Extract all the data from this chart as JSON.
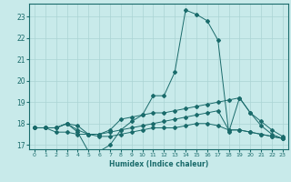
{
  "xlabel": "Humidex (Indice chaleur)",
  "background_color": "#c8eaea",
  "grid_color": "#aad4d4",
  "line_color": "#1a6b6b",
  "spine_color": "#1a6b6b",
  "xmin": -0.5,
  "xmax": 23.5,
  "ymin": 16.8,
  "ymax": 23.6,
  "yticks": [
    17,
    18,
    19,
    20,
    21,
    22,
    23
  ],
  "xticks": [
    0,
    1,
    2,
    3,
    4,
    5,
    6,
    7,
    8,
    9,
    10,
    11,
    12,
    13,
    14,
    15,
    16,
    17,
    18,
    19,
    20,
    21,
    22,
    23
  ],
  "lines": [
    {
      "x": [
        0,
        1,
        2,
        3,
        4,
        5,
        6,
        7,
        8,
        9,
        10,
        11,
        12,
        13,
        14,
        15,
        16,
        17,
        18,
        19,
        20,
        21,
        22,
        23
      ],
      "y": [
        17.8,
        17.8,
        17.8,
        18.0,
        17.6,
        16.7,
        16.7,
        17.0,
        17.7,
        18.1,
        18.4,
        19.3,
        19.3,
        20.4,
        23.3,
        23.1,
        22.8,
        21.9,
        17.6,
        19.2,
        18.5,
        17.9,
        17.5,
        17.3
      ]
    },
    {
      "x": [
        0,
        1,
        2,
        3,
        4,
        5,
        6,
        7,
        8,
        9,
        10,
        11,
        12,
        13,
        14,
        15,
        16,
        17,
        18,
        19,
        20,
        21,
        22,
        23
      ],
      "y": [
        17.8,
        17.8,
        17.6,
        17.6,
        17.5,
        17.5,
        17.5,
        17.7,
        18.2,
        18.3,
        18.4,
        18.5,
        18.5,
        18.6,
        18.7,
        18.8,
        18.9,
        19.0,
        19.1,
        19.2,
        18.5,
        18.1,
        17.7,
        17.4
      ]
    },
    {
      "x": [
        0,
        1,
        2,
        3,
        4,
        5,
        6,
        7,
        8,
        9,
        10,
        11,
        12,
        13,
        14,
        15,
        16,
        17,
        18,
        19,
        20,
        21,
        22,
        23
      ],
      "y": [
        17.8,
        17.8,
        17.8,
        18.0,
        17.9,
        17.5,
        17.5,
        17.6,
        17.7,
        17.8,
        17.9,
        18.0,
        18.1,
        18.2,
        18.3,
        18.4,
        18.5,
        18.6,
        17.7,
        17.7,
        17.6,
        17.5,
        17.4,
        17.3
      ]
    },
    {
      "x": [
        0,
        1,
        2,
        3,
        4,
        5,
        6,
        7,
        8,
        9,
        10,
        11,
        12,
        13,
        14,
        15,
        16,
        17,
        18,
        19,
        20,
        21,
        22,
        23
      ],
      "y": [
        17.8,
        17.8,
        17.8,
        18.0,
        17.7,
        17.5,
        17.4,
        17.4,
        17.5,
        17.6,
        17.7,
        17.8,
        17.8,
        17.8,
        17.9,
        18.0,
        18.0,
        17.9,
        17.7,
        17.7,
        17.6,
        17.5,
        17.4,
        17.3
      ]
    }
  ]
}
